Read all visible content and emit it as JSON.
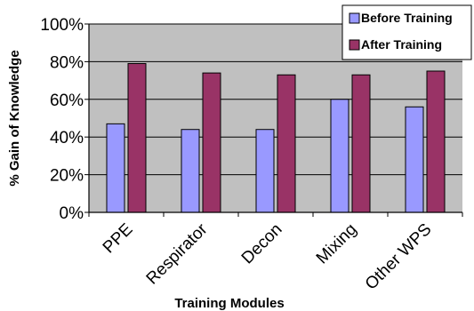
{
  "chart_data": {
    "type": "bar",
    "title": "",
    "xlabel": "Training Modules",
    "ylabel": "% Gain of Knowledge",
    "categories": [
      "PPE",
      "Respirator",
      "Decon",
      "Mixing",
      "Other WPS"
    ],
    "series": [
      {
        "name": "Before Training",
        "values": [
          0.47,
          0.44,
          0.44,
          0.6,
          0.56
        ],
        "color": "#9999ff"
      },
      {
        "name": "After Training",
        "values": [
          0.79,
          0.74,
          0.73,
          0.73,
          0.75
        ],
        "color": "#993366"
      }
    ],
    "ylim": [
      0,
      1
    ],
    "yticks": [
      "0%",
      "20%",
      "40%",
      "60%",
      "80%",
      "100%"
    ],
    "grid": true,
    "legend_position": "top-right",
    "plot_background": "#c0c0c0"
  }
}
